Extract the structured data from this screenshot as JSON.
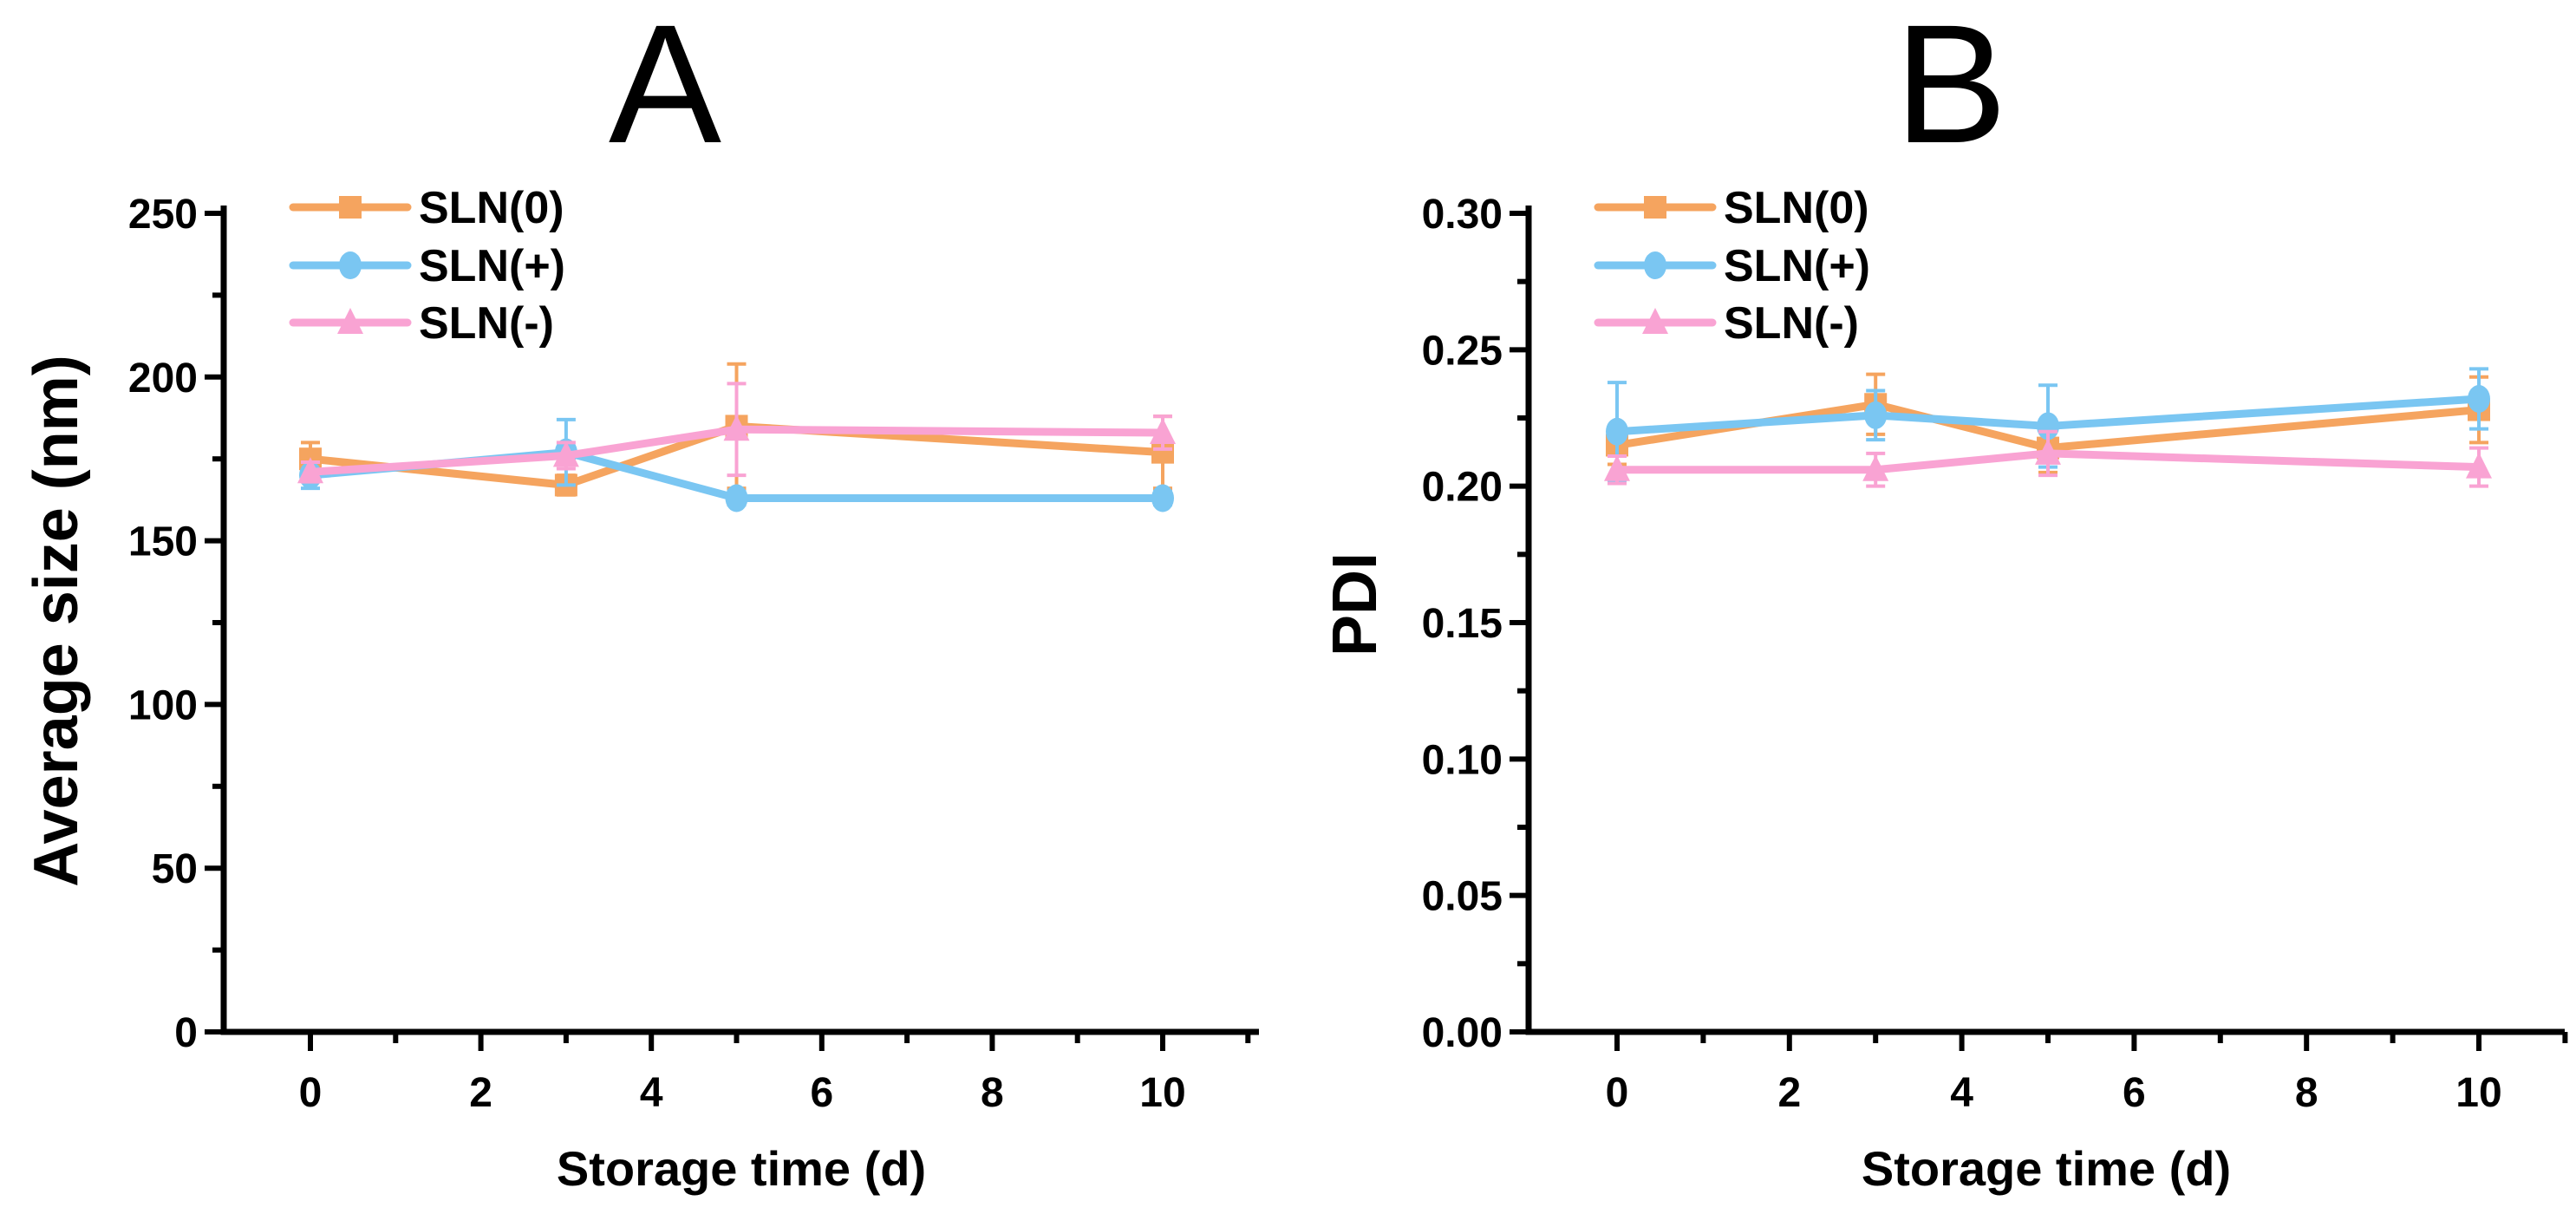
{
  "figure": {
    "background": "#ffffff",
    "text_color": "#000000"
  },
  "chart_data": [
    {
      "type": "line",
      "panel_label": "A",
      "xlabel": "Storage time (d)",
      "ylabel": "Average size (nm)",
      "x": [
        0,
        3,
        5,
        10
      ],
      "xlim": [
        -1,
        11
      ],
      "ylim": [
        0,
        250
      ],
      "grid": false,
      "legend_position": "top-left-inside",
      "xticks_major": [
        0,
        2,
        4,
        6,
        8,
        10
      ],
      "xtick_labels": [
        "0",
        "2",
        "4",
        "6",
        "8",
        "10"
      ],
      "xticks_minor": [
        1,
        3,
        5,
        7,
        9,
        11
      ],
      "yticks_major": [
        0,
        50,
        100,
        150,
        200,
        250
      ],
      "ytick_labels": [
        "0",
        "50",
        "100",
        "150",
        "200",
        "250"
      ],
      "yticks_minor": [
        25,
        75,
        125,
        175,
        225
      ],
      "series": [
        {
          "name": "SLN(0)",
          "marker": "square",
          "color": "#F5A45F",
          "values": [
            175,
            167,
            185,
            177
          ],
          "errors": [
            5,
            3,
            19,
            11
          ]
        },
        {
          "name": "SLN(+)",
          "marker": "circle",
          "color": "#7AC6F2",
          "values": [
            170,
            177,
            163,
            163
          ],
          "errors": [
            4,
            10,
            2,
            2
          ]
        },
        {
          "name": "SLN(-)",
          "marker": "triangle",
          "color": "#F9A3D3",
          "values": [
            171,
            176,
            184,
            183
          ],
          "errors": [
            3,
            4,
            14,
            5
          ]
        }
      ]
    },
    {
      "type": "line",
      "panel_label": "B",
      "xlabel": "Storage time (d)",
      "ylabel": "PDI",
      "x": [
        0,
        3,
        5,
        10
      ],
      "xlim": [
        -1,
        11
      ],
      "ylim": [
        0,
        0.3
      ],
      "grid": false,
      "legend_position": "top-left-inside",
      "xticks_major": [
        0,
        2,
        4,
        6,
        8,
        10
      ],
      "xtick_labels": [
        "0",
        "2",
        "4",
        "6",
        "8",
        "10"
      ],
      "xticks_minor": [
        1,
        3,
        5,
        7,
        9,
        11
      ],
      "yticks_major": [
        0,
        0.05,
        0.1,
        0.15,
        0.2,
        0.25,
        0.3
      ],
      "ytick_labels": [
        "0.00",
        "0.05",
        "0.10",
        "0.15",
        "0.20",
        "0.25",
        "0.30"
      ],
      "yticks_minor": [
        0.025,
        0.075,
        0.125,
        0.175,
        0.225,
        0.275
      ],
      "series": [
        {
          "name": "SLN(0)",
          "marker": "square",
          "color": "#F5A45F",
          "values": [
            0.215,
            0.23,
            0.214,
            0.228
          ],
          "errors": [
            0.007,
            0.011,
            0.009,
            0.012
          ]
        },
        {
          "name": "SLN(+)",
          "marker": "circle",
          "color": "#7AC6F2",
          "values": [
            0.22,
            0.226,
            0.222,
            0.232
          ],
          "errors": [
            0.018,
            0.009,
            0.015,
            0.011
          ]
        },
        {
          "name": "SLN(-)",
          "marker": "triangle",
          "color": "#F9A3D3",
          "values": [
            0.206,
            0.206,
            0.212,
            0.207
          ],
          "errors": [
            0.005,
            0.006,
            0.008,
            0.007
          ]
        }
      ]
    }
  ]
}
